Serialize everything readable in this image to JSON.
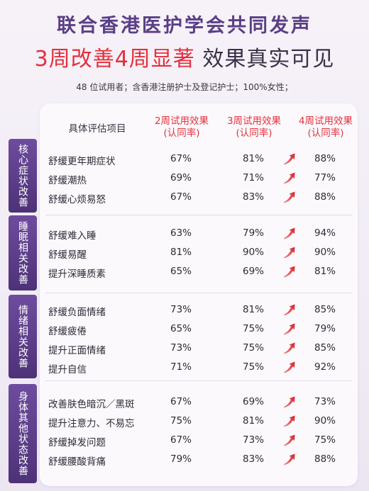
{
  "header": {
    "title_line1": "联合香港医护学会共同发声",
    "title_line2_red": "3周改善4周显著",
    "title_line2_dark": "效果真实可见",
    "subtitle": "48 位试用者；含香港注册护士及登记护士；100%女性；"
  },
  "table": {
    "col_item": "具体评估项目",
    "col2": "2周试用效果",
    "col3": "3周试用效果",
    "col4": "4周试用效果",
    "col_sub": "(认同率)",
    "arrow_icon": "red-trend-arrow-icon",
    "groups": [
      {
        "category": "核心症状改善",
        "rows": [
          {
            "name": "舒缓更年期症状",
            "w2": "67%",
            "w3": "81%",
            "w4": "88%"
          },
          {
            "name": "舒缓潮热",
            "w2": "69%",
            "w3": "71%",
            "w4": "77%"
          },
          {
            "name": "舒缓心烦易怒",
            "w2": "67%",
            "w3": "83%",
            "w4": "88%"
          }
        ]
      },
      {
        "category": "睡眠相关改善",
        "rows": [
          {
            "name": "舒缓难入睡",
            "w2": "63%",
            "w3": "79%",
            "w4": "94%"
          },
          {
            "name": "舒缓易醒",
            "w2": "81%",
            "w3": "90%",
            "w4": "90%"
          },
          {
            "name": "提升深睡质素",
            "w2": "65%",
            "w3": "69%",
            "w4": "81%"
          }
        ]
      },
      {
        "category": "情绪相关改善",
        "rows": [
          {
            "name": "舒缓负面情绪",
            "w2": "73%",
            "w3": "81%",
            "w4": "85%"
          },
          {
            "name": "舒缓疲倦",
            "w2": "65%",
            "w3": "75%",
            "w4": "79%"
          },
          {
            "name": "提升正面情绪",
            "w2": "73%",
            "w3": "75%",
            "w4": "85%"
          },
          {
            "name": "提升自信",
            "w2": "71%",
            "w3": "75%",
            "w4": "92%"
          }
        ]
      },
      {
        "category": "身体其他状态改善",
        "rows": [
          {
            "name": "改善肤色暗沉／黑斑",
            "w2": "67%",
            "w3": "69%",
            "w4": "73%"
          },
          {
            "name": "提升注意力、不易忘",
            "w2": "75%",
            "w3": "81%",
            "w4": "90%"
          },
          {
            "name": "舒缓掉发问题",
            "w2": "67%",
            "w3": "73%",
            "w4": "75%"
          },
          {
            "name": "舒缓腰酸背痛",
            "w2": "79%",
            "w3": "83%",
            "w4": "88%"
          }
        ]
      }
    ]
  },
  "colors": {
    "accent_purple": "#5a3f86",
    "accent_red": "#e3303c"
  }
}
